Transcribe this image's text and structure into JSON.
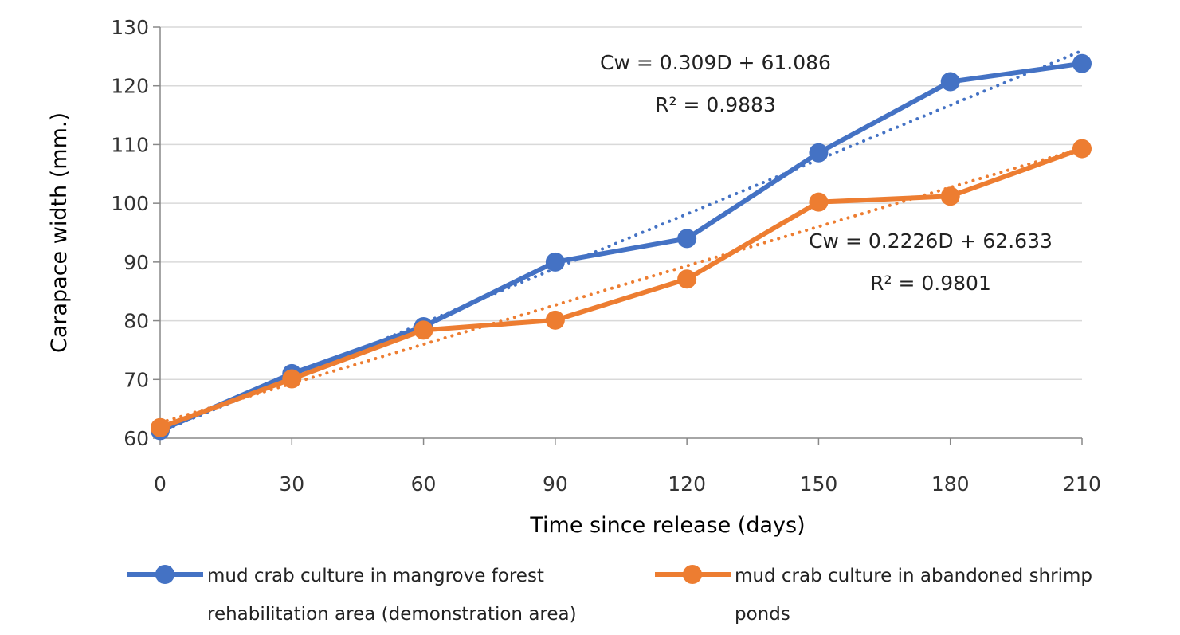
{
  "chart_data": {
    "type": "line",
    "title": "",
    "xlabel": "Time since release (days)",
    "ylabel": "Carapace width (mm.)",
    "x": [
      0,
      30,
      60,
      90,
      120,
      150,
      180,
      210
    ],
    "xlim": [
      0,
      210
    ],
    "ylim": [
      60,
      130
    ],
    "yticks": [
      60,
      70,
      80,
      90,
      100,
      110,
      120,
      130
    ],
    "grid": true,
    "legend_position": "bottom",
    "series": [
      {
        "name": "mud crab culture in mangrove forest rehabilitation area (demonstration area)",
        "legend_lines": [
          "mud crab culture in mangrove forest",
          "rehabilitation area (demonstration area)"
        ],
        "color": "#4472C4",
        "values": [
          61.3,
          71.0,
          79.0,
          90.0,
          94.0,
          108.6,
          120.7,
          123.8
        ],
        "trendline": {
          "slope": 0.309,
          "intercept": 61.086,
          "equation": "Cw = 0.309D + 61.086",
          "r2": "R² = 0.9883"
        }
      },
      {
        "name": "mud crab  culture in abandoned shrimp ponds",
        "legend_lines": [
          "mud crab  culture in abandoned shrimp",
          "ponds"
        ],
        "color": "#ED7D31",
        "values": [
          61.8,
          70.1,
          78.4,
          80.1,
          87.1,
          100.2,
          101.2,
          109.3
        ],
        "trendline": {
          "slope": 0.2226,
          "intercept": 62.633,
          "equation": "Cw = 0.2226D + 62.633",
          "r2": "R² = 0.9801"
        }
      }
    ]
  }
}
